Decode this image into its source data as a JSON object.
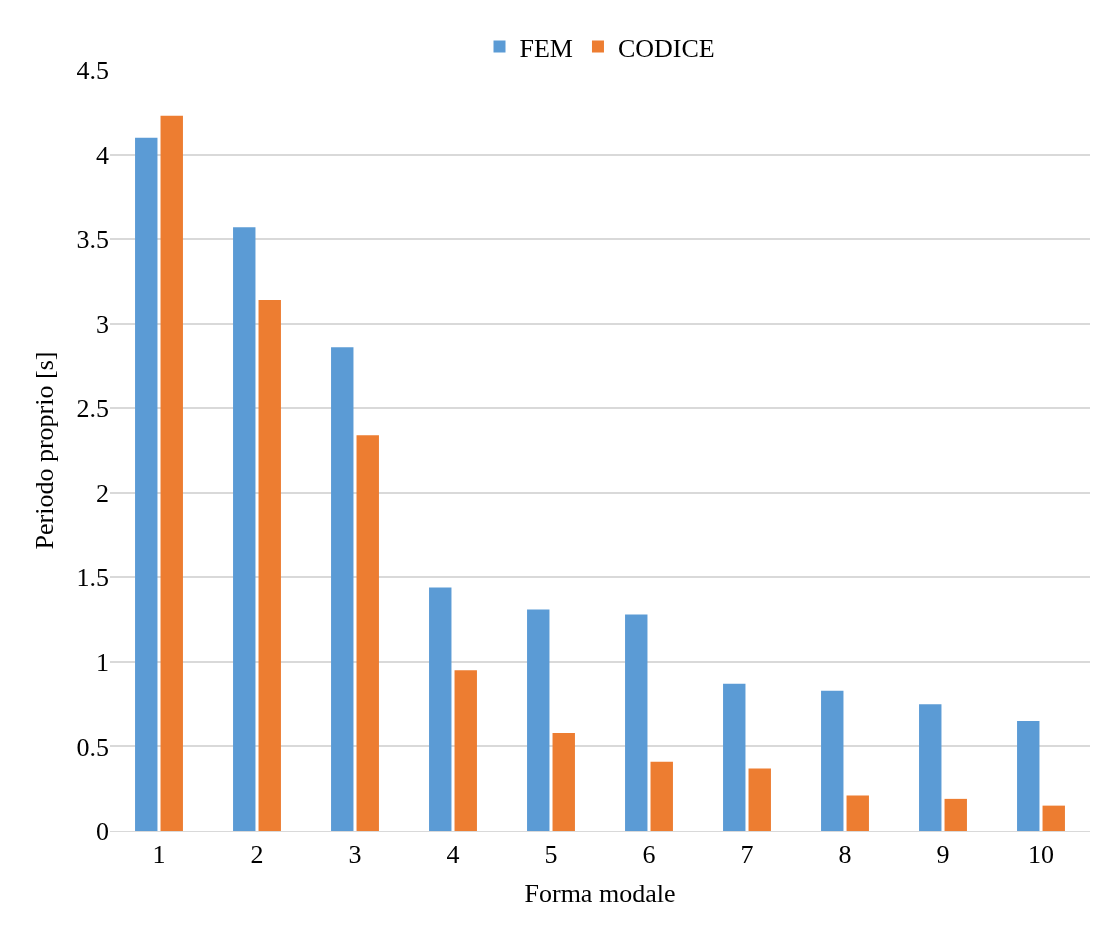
{
  "chart_data": {
    "type": "bar",
    "xlabel": "Forma modale",
    "ylabel": "Periodo proprio [s]",
    "categories": [
      "1",
      "2",
      "3",
      "4",
      "5",
      "6",
      "7",
      "8",
      "9",
      "10"
    ],
    "series": [
      {
        "name": "FEM",
        "color": "#5b9bd5",
        "values": [
          4.1,
          3.57,
          2.86,
          1.44,
          1.31,
          1.28,
          0.87,
          0.83,
          0.75,
          0.65
        ]
      },
      {
        "name": "CODICE",
        "color": "#ed7d31",
        "values": [
          4.23,
          3.14,
          2.34,
          0.95,
          0.58,
          0.41,
          0.37,
          0.21,
          0.19,
          0.15
        ]
      }
    ],
    "ylim": [
      0,
      4.5
    ],
    "yticks": [
      0,
      0.5,
      1,
      1.5,
      2,
      2.5,
      3,
      3.5,
      4,
      4.5
    ],
    "grid": "y",
    "legend": "top"
  }
}
